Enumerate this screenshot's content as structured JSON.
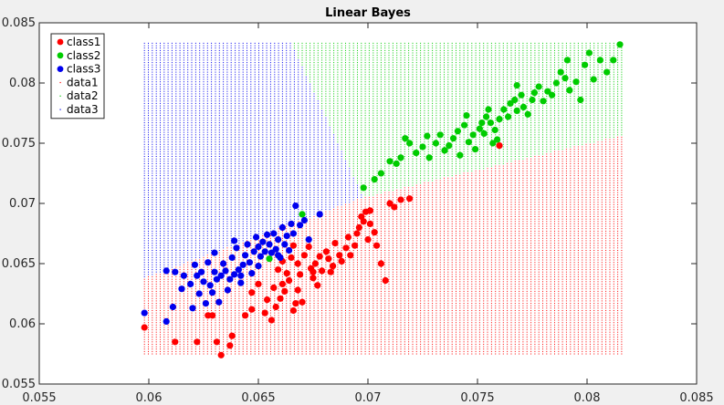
{
  "chart_data": {
    "type": "scatter",
    "title": "Linear  Bayes",
    "xlabel": "",
    "ylabel": "",
    "xlim": [
      0.055,
      0.085
    ],
    "ylim": [
      0.055,
      0.085
    ],
    "xticks": [
      "0.055",
      "0.06",
      "0.065",
      "0.07",
      "0.075",
      "0.08",
      "0.085"
    ],
    "yticks": [
      "0.055",
      "0.06",
      "0.065",
      "0.07",
      "0.075",
      "0.08",
      "0.085"
    ],
    "legend_position": "top-left",
    "grid": false,
    "legend": [
      {
        "label": "class1",
        "color": "#ff0000",
        "marker": "filled-circle"
      },
      {
        "label": "class2",
        "color": "#00cc00",
        "marker": "filled-circle"
      },
      {
        "label": "class3",
        "color": "#0000ee",
        "marker": "filled-circle"
      },
      {
        "label": "data1",
        "color": "#ff0000",
        "marker": "point"
      },
      {
        "label": "data2",
        "color": "#00cc00",
        "marker": "point"
      },
      {
        "label": "data3",
        "color": "#0000ee",
        "marker": "point"
      }
    ],
    "decision_grid": {
      "x_range": [
        0.0598,
        0.0817
      ],
      "y_range": [
        0.0575,
        0.0833
      ],
      "rule": "linear Bayes: class3 where x < 0.0665 + (0.0833 - y) * 0.262 and y > 0.069 (plus region above boundary left); class2 upper right above line from (0.0698,0.0705) to (0.0817,0.0757); class1 below",
      "boundary_3_2": [
        [
          0.0665,
          0.0833
        ],
        [
          0.0698,
          0.0705
        ]
      ],
      "boundary_3_1": [
        [
          0.0598,
          0.0638
        ],
        [
          0.0698,
          0.0705
        ]
      ],
      "boundary_2_1": [
        [
          0.0698,
          0.0705
        ],
        [
          0.0817,
          0.0757
        ]
      ]
    },
    "series": [
      {
        "name": "class1",
        "color": "#ff0000",
        "points": [
          [
            0.0598,
            0.0597
          ],
          [
            0.0612,
            0.0585
          ],
          [
            0.0622,
            0.0585
          ],
          [
            0.0627,
            0.0607
          ],
          [
            0.0629,
            0.0607
          ],
          [
            0.0631,
            0.0585
          ],
          [
            0.0633,
            0.0574
          ],
          [
            0.0637,
            0.0582
          ],
          [
            0.0638,
            0.059
          ],
          [
            0.0644,
            0.0607
          ],
          [
            0.0647,
            0.0612
          ],
          [
            0.065,
            0.0633
          ],
          [
            0.0653,
            0.0609
          ],
          [
            0.0656,
            0.0603
          ],
          [
            0.0657,
            0.063
          ],
          [
            0.0658,
            0.0614
          ],
          [
            0.066,
            0.0621
          ],
          [
            0.0661,
            0.0633
          ],
          [
            0.0662,
            0.0627
          ],
          [
            0.0664,
            0.0636
          ],
          [
            0.0666,
            0.0611
          ],
          [
            0.0667,
            0.0617
          ],
          [
            0.0668,
            0.0628
          ],
          [
            0.0659,
            0.0645
          ],
          [
            0.0661,
            0.0652
          ],
          [
            0.0663,
            0.0642
          ],
          [
            0.0665,
            0.0655
          ],
          [
            0.0666,
            0.0665
          ],
          [
            0.0668,
            0.065
          ],
          [
            0.0669,
            0.0641
          ],
          [
            0.0671,
            0.0657
          ],
          [
            0.0673,
            0.0664
          ],
          [
            0.0674,
            0.0646
          ],
          [
            0.0675,
            0.0638
          ],
          [
            0.0676,
            0.065
          ],
          [
            0.0677,
            0.0632
          ],
          [
            0.0678,
            0.0656
          ],
          [
            0.0679,
            0.0644
          ],
          [
            0.0681,
            0.066
          ],
          [
            0.0682,
            0.0654
          ],
          [
            0.0684,
            0.0648
          ],
          [
            0.0685,
            0.0667
          ],
          [
            0.0687,
            0.0657
          ],
          [
            0.0688,
            0.0652
          ],
          [
            0.069,
            0.0663
          ],
          [
            0.0691,
            0.0672
          ],
          [
            0.0692,
            0.0657
          ],
          [
            0.0694,
            0.0665
          ],
          [
            0.0695,
            0.0675
          ],
          [
            0.0696,
            0.068
          ],
          [
            0.0697,
            0.0689
          ],
          [
            0.0698,
            0.0685
          ],
          [
            0.0699,
            0.0693
          ],
          [
            0.07,
            0.067
          ],
          [
            0.0701,
            0.0683
          ],
          [
            0.0703,
            0.0676
          ],
          [
            0.0704,
            0.0665
          ],
          [
            0.0706,
            0.065
          ],
          [
            0.0708,
            0.0636
          ],
          [
            0.071,
            0.07
          ],
          [
            0.0712,
            0.0697
          ],
          [
            0.0715,
            0.0703
          ],
          [
            0.0719,
            0.0704
          ],
          [
            0.0701,
            0.0694
          ],
          [
            0.0654,
            0.062
          ],
          [
            0.067,
            0.0618
          ],
          [
            0.0647,
            0.0626
          ],
          [
            0.0683,
            0.0643
          ],
          [
            0.0675,
            0.0643
          ],
          [
            0.076,
            0.0748
          ]
        ]
      },
      {
        "name": "class2",
        "color": "#00cc00",
        "points": [
          [
            0.0655,
            0.0654
          ],
          [
            0.067,
            0.0691
          ],
          [
            0.0698,
            0.0713
          ],
          [
            0.0703,
            0.072
          ],
          [
            0.0706,
            0.0725
          ],
          [
            0.071,
            0.0735
          ],
          [
            0.0713,
            0.0733
          ],
          [
            0.0715,
            0.0738
          ],
          [
            0.0717,
            0.0754
          ],
          [
            0.0719,
            0.075
          ],
          [
            0.0722,
            0.0742
          ],
          [
            0.0725,
            0.0747
          ],
          [
            0.0728,
            0.0738
          ],
          [
            0.0731,
            0.075
          ],
          [
            0.0733,
            0.0757
          ],
          [
            0.0735,
            0.0744
          ],
          [
            0.0737,
            0.0748
          ],
          [
            0.0739,
            0.0754
          ],
          [
            0.0741,
            0.076
          ],
          [
            0.0742,
            0.074
          ],
          [
            0.0744,
            0.0765
          ],
          [
            0.0746,
            0.0751
          ],
          [
            0.0748,
            0.0757
          ],
          [
            0.0749,
            0.0745
          ],
          [
            0.0751,
            0.0762
          ],
          [
            0.0753,
            0.0758
          ],
          [
            0.0754,
            0.0772
          ],
          [
            0.0755,
            0.0778
          ],
          [
            0.0756,
            0.0767
          ],
          [
            0.0758,
            0.0761
          ],
          [
            0.0759,
            0.0753
          ],
          [
            0.076,
            0.077
          ],
          [
            0.0762,
            0.0778
          ],
          [
            0.0764,
            0.0772
          ],
          [
            0.0765,
            0.0783
          ],
          [
            0.0767,
            0.0786
          ],
          [
            0.0768,
            0.0777
          ],
          [
            0.077,
            0.079
          ],
          [
            0.0771,
            0.078
          ],
          [
            0.0773,
            0.0774
          ],
          [
            0.0775,
            0.0786
          ],
          [
            0.0776,
            0.0792
          ],
          [
            0.0778,
            0.0797
          ],
          [
            0.078,
            0.0785
          ],
          [
            0.0782,
            0.0793
          ],
          [
            0.0784,
            0.079
          ],
          [
            0.0786,
            0.08
          ],
          [
            0.0788,
            0.0809
          ],
          [
            0.079,
            0.0804
          ],
          [
            0.0792,
            0.0794
          ],
          [
            0.0795,
            0.0801
          ],
          [
            0.0797,
            0.0786
          ],
          [
            0.0799,
            0.0815
          ],
          [
            0.0801,
            0.0825
          ],
          [
            0.0803,
            0.0803
          ],
          [
            0.0806,
            0.0819
          ],
          [
            0.0809,
            0.0809
          ],
          [
            0.0812,
            0.0819
          ],
          [
            0.0815,
            0.0832
          ],
          [
            0.0757,
            0.075
          ],
          [
            0.0745,
            0.0773
          ],
          [
            0.0752,
            0.0767
          ],
          [
            0.0727,
            0.0756
          ],
          [
            0.0768,
            0.0798
          ],
          [
            0.0791,
            0.0819
          ]
        ]
      },
      {
        "name": "class3",
        "color": "#0000ee",
        "points": [
          [
            0.0598,
            0.0609
          ],
          [
            0.0608,
            0.0602
          ],
          [
            0.0608,
            0.0644
          ],
          [
            0.0611,
            0.0614
          ],
          [
            0.0612,
            0.0643
          ],
          [
            0.0615,
            0.0629
          ],
          [
            0.0616,
            0.064
          ],
          [
            0.0619,
            0.0633
          ],
          [
            0.062,
            0.0613
          ],
          [
            0.0621,
            0.0649
          ],
          [
            0.0622,
            0.064
          ],
          [
            0.0623,
            0.0625
          ],
          [
            0.0624,
            0.0643
          ],
          [
            0.0625,
            0.0635
          ],
          [
            0.0627,
            0.0651
          ],
          [
            0.0628,
            0.0632
          ],
          [
            0.0629,
            0.0626
          ],
          [
            0.063,
            0.0643
          ],
          [
            0.0631,
            0.0637
          ],
          [
            0.0632,
            0.0618
          ],
          [
            0.0633,
            0.064
          ],
          [
            0.0634,
            0.065
          ],
          [
            0.0635,
            0.0644
          ],
          [
            0.0636,
            0.0628
          ],
          [
            0.0637,
            0.0637
          ],
          [
            0.0638,
            0.0655
          ],
          [
            0.0639,
            0.0641
          ],
          [
            0.064,
            0.0663
          ],
          [
            0.0641,
            0.0645
          ],
          [
            0.0642,
            0.0634
          ],
          [
            0.0643,
            0.0649
          ],
          [
            0.0644,
            0.0657
          ],
          [
            0.0645,
            0.0666
          ],
          [
            0.0646,
            0.0651
          ],
          [
            0.0647,
            0.0642
          ],
          [
            0.0648,
            0.066
          ],
          [
            0.0649,
            0.0672
          ],
          [
            0.065,
            0.0664
          ],
          [
            0.0651,
            0.0656
          ],
          [
            0.0652,
            0.0668
          ],
          [
            0.0653,
            0.066
          ],
          [
            0.0654,
            0.0674
          ],
          [
            0.0655,
            0.0666
          ],
          [
            0.0656,
            0.0659
          ],
          [
            0.0657,
            0.0675
          ],
          [
            0.0658,
            0.0662
          ],
          [
            0.0659,
            0.067
          ],
          [
            0.066,
            0.0655
          ],
          [
            0.0661,
            0.068
          ],
          [
            0.0662,
            0.0666
          ],
          [
            0.0663,
            0.0673
          ],
          [
            0.0664,
            0.0661
          ],
          [
            0.0665,
            0.0683
          ],
          [
            0.0666,
            0.0675
          ],
          [
            0.0667,
            0.0698
          ],
          [
            0.0669,
            0.0682
          ],
          [
            0.0671,
            0.0686
          ],
          [
            0.0673,
            0.067
          ],
          [
            0.0678,
            0.0691
          ],
          [
            0.0639,
            0.0669
          ],
          [
            0.063,
            0.0659
          ],
          [
            0.0626,
            0.0617
          ],
          [
            0.0642,
            0.064
          ],
          [
            0.065,
            0.0648
          ],
          [
            0.0659,
            0.0657
          ]
        ]
      }
    ]
  }
}
